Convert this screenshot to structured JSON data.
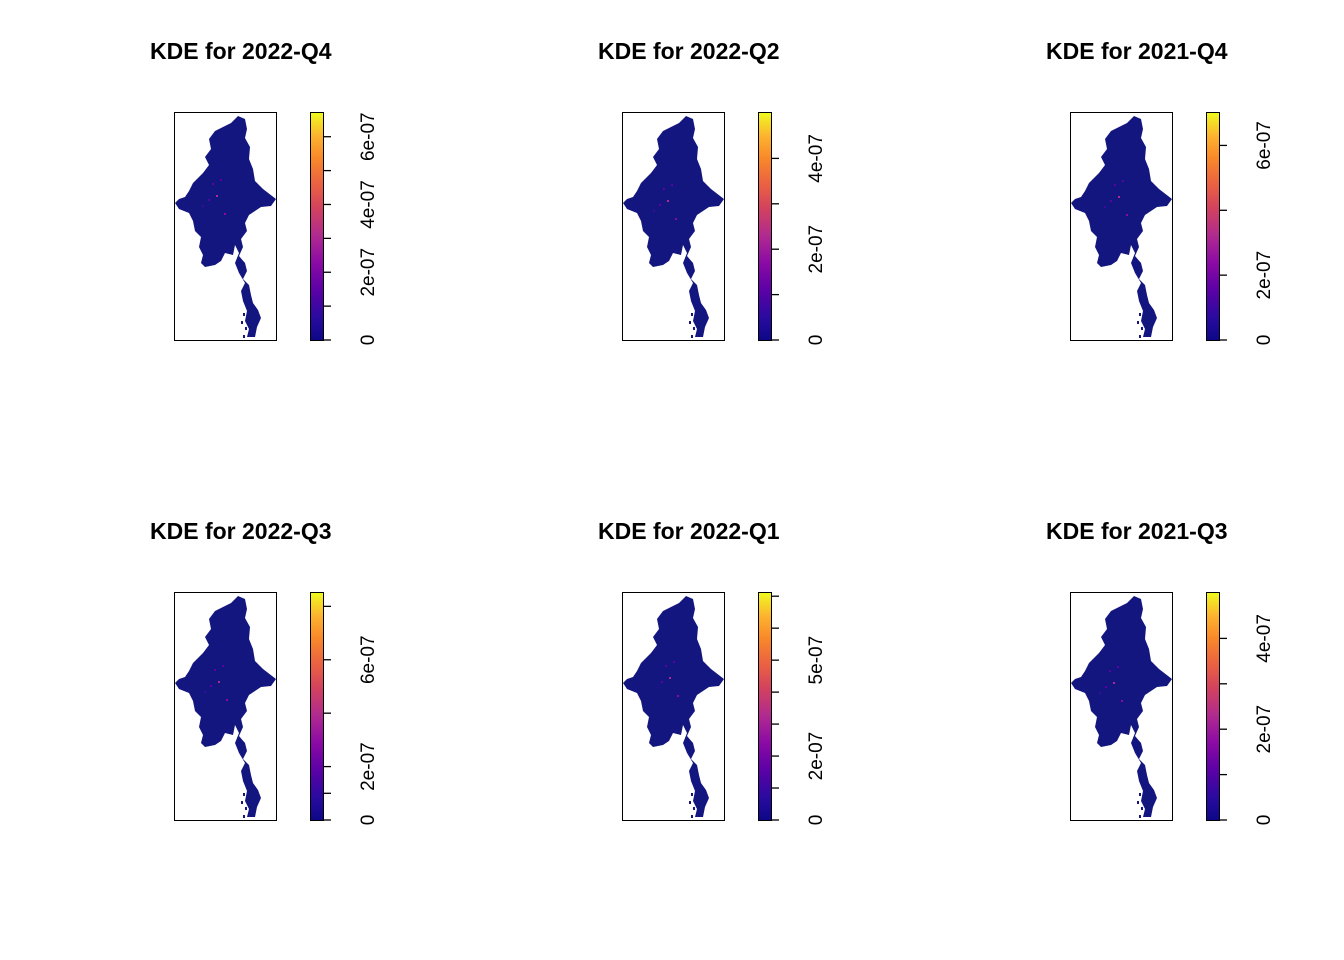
{
  "colorscale": [
    "#0d0887",
    "#5c01a6",
    "#b12a90",
    "#ea5f44",
    "#f0f921"
  ],
  "map_fill": "#141680",
  "panels": [
    {
      "id": "p1",
      "title": "KDE for 2022-Q4",
      "max": 6.7e-07,
      "ticks": [
        {
          "value": 0,
          "label": "0"
        },
        {
          "value": 2e-07,
          "label": "2e-07"
        },
        {
          "value": 4e-07,
          "label": "4e-07"
        },
        {
          "value": 6e-07,
          "label": "6e-07"
        }
      ],
      "minor_ticks": [
        1e-07,
        3e-07,
        5e-07
      ]
    },
    {
      "id": "p2",
      "title": "KDE for 2022-Q2",
      "max": 5e-07,
      "ticks": [
        {
          "value": 0,
          "label": "0"
        },
        {
          "value": 2e-07,
          "label": "2e-07"
        },
        {
          "value": 4e-07,
          "label": "4e-07"
        }
      ],
      "minor_ticks": [
        1e-07,
        3e-07
      ]
    },
    {
      "id": "p3",
      "title": "KDE for 2021-Q4",
      "max": 7e-07,
      "ticks": [
        {
          "value": 0,
          "label": "0"
        },
        {
          "value": 2e-07,
          "label": "2e-07"
        },
        {
          "value": 6e-07,
          "label": "6e-07"
        }
      ],
      "minor_ticks": [
        4e-07
      ]
    },
    {
      "id": "p4",
      "title": "KDE for 2022-Q3",
      "max": 8.5e-07,
      "ticks": [
        {
          "value": 0,
          "label": "0"
        },
        {
          "value": 2e-07,
          "label": "2e-07"
        },
        {
          "value": 6e-07,
          "label": "6e-07"
        }
      ],
      "minor_ticks": [
        1e-07,
        4e-07,
        8e-07
      ]
    },
    {
      "id": "p5",
      "title": "KDE for 2022-Q1",
      "max": 7.1e-07,
      "ticks": [
        {
          "value": 0,
          "label": "0"
        },
        {
          "value": 2e-07,
          "label": "2e-07"
        },
        {
          "value": 5e-07,
          "label": "5e-07"
        }
      ],
      "minor_ticks": [
        1e-07,
        3e-07,
        4e-07,
        6e-07,
        7e-07
      ]
    },
    {
      "id": "p6",
      "title": "KDE for 2021-Q3",
      "max": 5e-07,
      "ticks": [
        {
          "value": 0,
          "label": "0"
        },
        {
          "value": 2e-07,
          "label": "2e-07"
        },
        {
          "value": 4e-07,
          "label": "4e-07"
        }
      ],
      "minor_ticks": [
        1e-07,
        3e-07
      ]
    }
  ]
}
